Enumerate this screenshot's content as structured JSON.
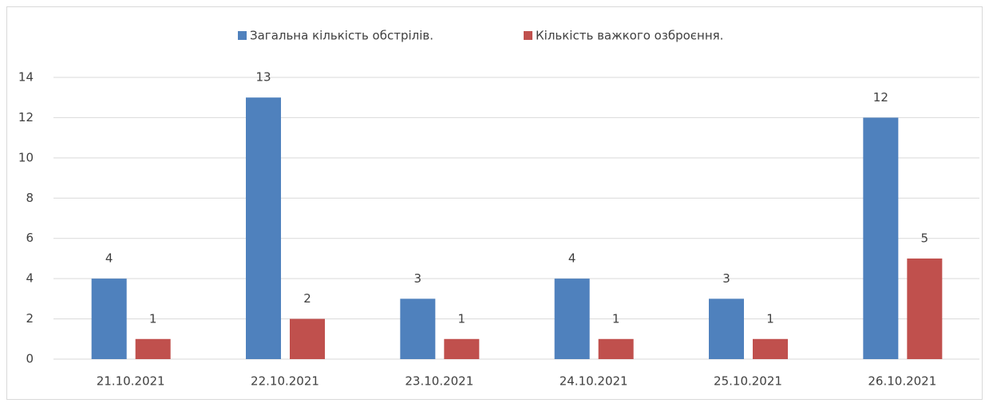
{
  "chart_data": {
    "type": "bar",
    "categories": [
      "21.10.2021",
      "22.10.2021",
      "23.10.2021",
      "24.10.2021",
      "25.10.2021",
      "26.10.2021"
    ],
    "series": [
      {
        "name": "Загальна кількість обстрілів.",
        "color": "#4f81bd",
        "values": [
          4,
          13,
          3,
          4,
          3,
          12
        ]
      },
      {
        "name": "Кількість важкого озброєння.",
        "color": "#c0504d",
        "values": [
          1,
          2,
          1,
          1,
          1,
          5
        ]
      }
    ],
    "ylim": [
      0,
      14
    ],
    "yticks": [
      0,
      2,
      4,
      6,
      8,
      10,
      12,
      14
    ],
    "grid": true,
    "legend": "top"
  }
}
